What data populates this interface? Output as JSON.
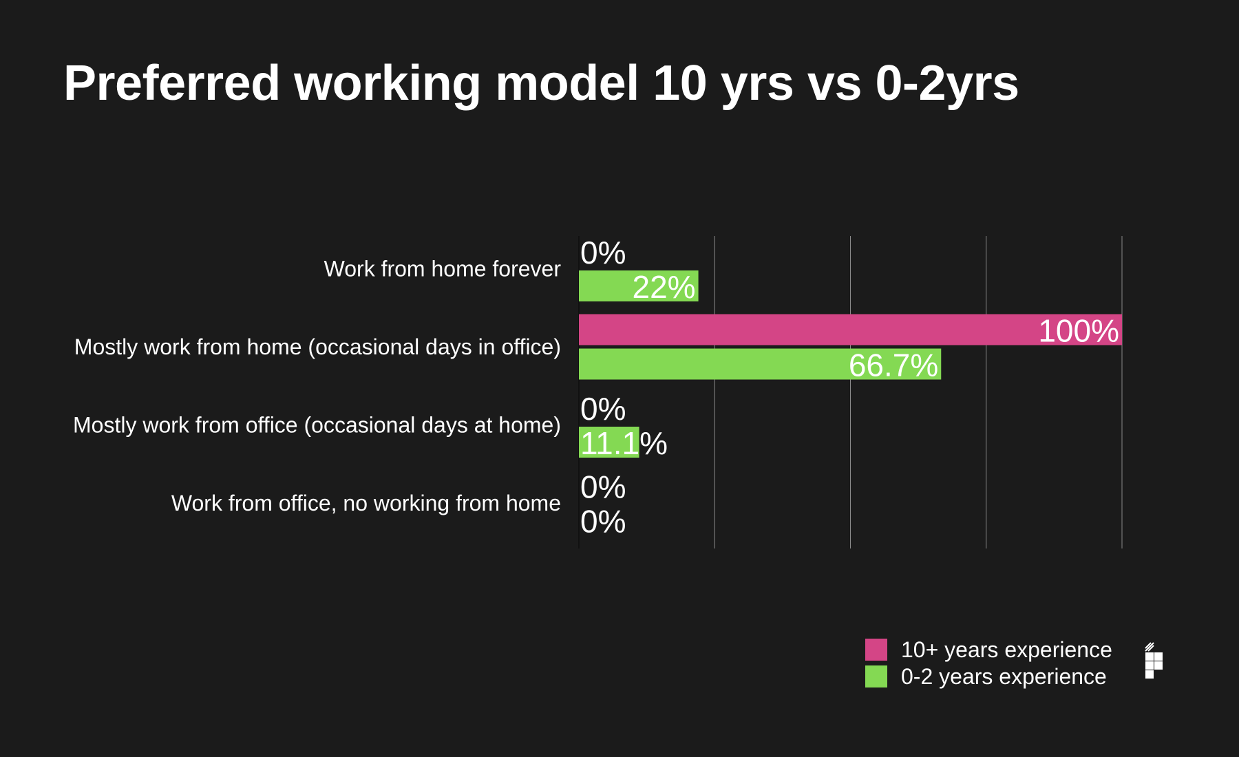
{
  "chart_data": {
    "type": "bar",
    "orientation": "horizontal",
    "title": "Preferred working model 10 yrs vs 0-2yrs",
    "categories": [
      "Work from home forever",
      "Mostly work from home (occasional days in office)",
      "Mostly work from office (occasional days at home)",
      "Work from office, no working from home"
    ],
    "series": [
      {
        "name": "10+ years experience",
        "color": "#d44586",
        "values": [
          0,
          100,
          0,
          0
        ],
        "labels": [
          "0%",
          "100%",
          "0%",
          "0%"
        ]
      },
      {
        "name": "0-2 years experience",
        "color": "#84d953",
        "values": [
          22,
          66.7,
          11.1,
          0
        ],
        "labels": [
          "22%",
          "66.7%",
          "11.1%",
          "0%"
        ]
      }
    ],
    "xlim": [
      0,
      100
    ],
    "grid": true,
    "legend": "bottom-right",
    "xlabel": "",
    "ylabel": ""
  },
  "logo_icon": "pixel-grid-logo-icon"
}
